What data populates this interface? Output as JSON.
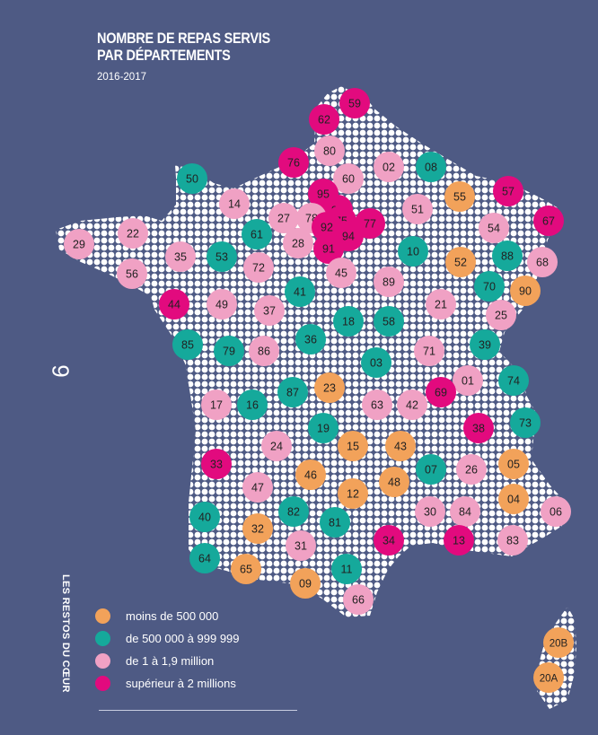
{
  "title_line1": "NOMBRE DE REPAS SERVIS",
  "title_line2": "PAR DÉPARTEMENTS",
  "subtitle": "2016-2017",
  "page_number": "9",
  "side_label": "LES RESTOS DU CŒUR",
  "colors": {
    "background": "#4e5a84",
    "map_dots": "#ffffff",
    "orange": "#f2a25a",
    "teal": "#15a99b",
    "pink": "#f0a1c4",
    "magenta": "#e20a7e"
  },
  "legend": [
    {
      "key": "orange",
      "label": "moins de 500 000"
    },
    {
      "key": "teal",
      "label": "de 500 000 à 999 999"
    },
    {
      "key": "pink",
      "label": "de 1 à 1,9 million"
    },
    {
      "key": "magenta",
      "label": "supérieur à 2 millions"
    }
  ],
  "departments": [
    {
      "code": "59",
      "cat": "magenta"
    },
    {
      "code": "62",
      "cat": "magenta"
    },
    {
      "code": "80",
      "cat": "pink"
    },
    {
      "code": "76",
      "cat": "magenta"
    },
    {
      "code": "02",
      "cat": "pink"
    },
    {
      "code": "08",
      "cat": "teal"
    },
    {
      "code": "60",
      "cat": "pink"
    },
    {
      "code": "50",
      "cat": "teal"
    },
    {
      "code": "14",
      "cat": "pink"
    },
    {
      "code": "95",
      "cat": "magenta"
    },
    {
      "code": "93",
      "cat": "magenta"
    },
    {
      "code": "27",
      "cat": "pink"
    },
    {
      "code": "78",
      "cat": "pink"
    },
    {
      "code": "75",
      "cat": "magenta"
    },
    {
      "code": "92",
      "cat": "magenta"
    },
    {
      "code": "94",
      "cat": "magenta"
    },
    {
      "code": "77",
      "cat": "magenta"
    },
    {
      "code": "51",
      "cat": "pink"
    },
    {
      "code": "55",
      "cat": "orange"
    },
    {
      "code": "57",
      "cat": "magenta"
    },
    {
      "code": "67",
      "cat": "magenta"
    },
    {
      "code": "54",
      "cat": "pink"
    },
    {
      "code": "29",
      "cat": "pink"
    },
    {
      "code": "22",
      "cat": "pink"
    },
    {
      "code": "61",
      "cat": "teal"
    },
    {
      "code": "28",
      "cat": "pink"
    },
    {
      "code": "91",
      "cat": "magenta"
    },
    {
      "code": "10",
      "cat": "teal"
    },
    {
      "code": "52",
      "cat": "orange"
    },
    {
      "code": "88",
      "cat": "teal"
    },
    {
      "code": "68",
      "cat": "pink"
    },
    {
      "code": "56",
      "cat": "pink"
    },
    {
      "code": "35",
      "cat": "pink"
    },
    {
      "code": "53",
      "cat": "teal"
    },
    {
      "code": "72",
      "cat": "pink"
    },
    {
      "code": "45",
      "cat": "pink"
    },
    {
      "code": "89",
      "cat": "pink"
    },
    {
      "code": "70",
      "cat": "teal"
    },
    {
      "code": "90",
      "cat": "orange"
    },
    {
      "code": "44",
      "cat": "magenta"
    },
    {
      "code": "49",
      "cat": "pink"
    },
    {
      "code": "41",
      "cat": "teal"
    },
    {
      "code": "37",
      "cat": "pink"
    },
    {
      "code": "21",
      "cat": "pink"
    },
    {
      "code": "25",
      "cat": "pink"
    },
    {
      "code": "18",
      "cat": "teal"
    },
    {
      "code": "58",
      "cat": "teal"
    },
    {
      "code": "85",
      "cat": "teal"
    },
    {
      "code": "79",
      "cat": "teal"
    },
    {
      "code": "86",
      "cat": "pink"
    },
    {
      "code": "36",
      "cat": "teal"
    },
    {
      "code": "71",
      "cat": "pink"
    },
    {
      "code": "39",
      "cat": "teal"
    },
    {
      "code": "03",
      "cat": "teal"
    },
    {
      "code": "01",
      "cat": "pink"
    },
    {
      "code": "74",
      "cat": "teal"
    },
    {
      "code": "87",
      "cat": "teal"
    },
    {
      "code": "23",
      "cat": "orange"
    },
    {
      "code": "17",
      "cat": "pink"
    },
    {
      "code": "16",
      "cat": "teal"
    },
    {
      "code": "63",
      "cat": "pink"
    },
    {
      "code": "42",
      "cat": "pink"
    },
    {
      "code": "69",
      "cat": "magenta"
    },
    {
      "code": "19",
      "cat": "teal"
    },
    {
      "code": "38",
      "cat": "magenta"
    },
    {
      "code": "73",
      "cat": "teal"
    },
    {
      "code": "24",
      "cat": "pink"
    },
    {
      "code": "15",
      "cat": "orange"
    },
    {
      "code": "43",
      "cat": "orange"
    },
    {
      "code": "33",
      "cat": "magenta"
    },
    {
      "code": "46",
      "cat": "orange"
    },
    {
      "code": "07",
      "cat": "teal"
    },
    {
      "code": "26",
      "cat": "pink"
    },
    {
      "code": "05",
      "cat": "orange"
    },
    {
      "code": "47",
      "cat": "pink"
    },
    {
      "code": "48",
      "cat": "orange"
    },
    {
      "code": "12",
      "cat": "orange"
    },
    {
      "code": "04",
      "cat": "orange"
    },
    {
      "code": "40",
      "cat": "teal"
    },
    {
      "code": "82",
      "cat": "teal"
    },
    {
      "code": "30",
      "cat": "pink"
    },
    {
      "code": "84",
      "cat": "pink"
    },
    {
      "code": "06",
      "cat": "pink"
    },
    {
      "code": "32",
      "cat": "orange"
    },
    {
      "code": "81",
      "cat": "teal"
    },
    {
      "code": "31",
      "cat": "pink"
    },
    {
      "code": "34",
      "cat": "magenta"
    },
    {
      "code": "13",
      "cat": "magenta"
    },
    {
      "code": "83",
      "cat": "pink"
    },
    {
      "code": "64",
      "cat": "teal"
    },
    {
      "code": "65",
      "cat": "orange"
    },
    {
      "code": "09",
      "cat": "orange"
    },
    {
      "code": "11",
      "cat": "teal"
    },
    {
      "code": "66",
      "cat": "pink"
    },
    {
      "code": "20B",
      "cat": "orange"
    },
    {
      "code": "20A",
      "cat": "orange"
    }
  ]
}
